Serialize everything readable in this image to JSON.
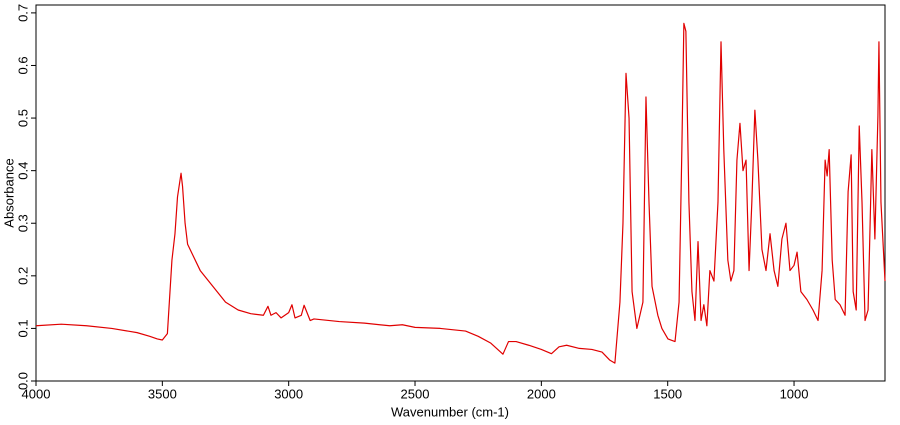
{
  "chart_data": {
    "type": "line",
    "xlabel": "Wavenumber (cm-1)",
    "ylabel": "Absorbance",
    "color": "#e00000",
    "xlim": [
      4000,
      640
    ],
    "ylim": [
      0,
      0.715
    ],
    "xticks": [
      4000,
      3500,
      3000,
      2500,
      2000,
      1500,
      1000
    ],
    "yticks": [
      {
        "value": 0,
        "label": "0.0"
      },
      0.1,
      0.2,
      0.3,
      0.4,
      0.5,
      0.6,
      0.7
    ],
    "x": [
      4000,
      3900,
      3800,
      3700,
      3600,
      3550,
      3520,
      3500,
      3480,
      3462,
      3450,
      3440,
      3426,
      3420,
      3410,
      3400,
      3350,
      3300,
      3250,
      3200,
      3150,
      3100,
      3082,
      3070,
      3050,
      3030,
      3000,
      2987,
      2975,
      2950,
      2939,
      2915,
      2900,
      2800,
      2700,
      2600,
      2550,
      2500,
      2400,
      2300,
      2250,
      2200,
      2152,
      2130,
      2100,
      2050,
      2000,
      1960,
      1930,
      1900,
      1850,
      1800,
      1760,
      1730,
      1709,
      1689,
      1677,
      1665,
      1653,
      1641,
      1622,
      1598,
      1586,
      1574,
      1562,
      1539,
      1523,
      1499,
      1471,
      1455,
      1444,
      1436,
      1428,
      1416,
      1404,
      1392,
      1380,
      1368,
      1357,
      1345,
      1333,
      1317,
      1301,
      1289,
      1278,
      1262,
      1250,
      1238,
      1226,
      1214,
      1202,
      1190,
      1178,
      1167,
      1155,
      1143,
      1127,
      1111,
      1095,
      1079,
      1064,
      1048,
      1032,
      1016,
      1000,
      988,
      973,
      949,
      925,
      905,
      889,
      877,
      869,
      861,
      849,
      837,
      818,
      798,
      786,
      774,
      766,
      754,
      742,
      731,
      719,
      707,
      692,
      680,
      668,
      664,
      656,
      640
    ],
    "values": [
      0.105,
      0.108,
      0.105,
      0.1,
      0.092,
      0.085,
      0.08,
      0.078,
      0.09,
      0.23,
      0.28,
      0.35,
      0.395,
      0.37,
      0.3,
      0.26,
      0.21,
      0.18,
      0.15,
      0.135,
      0.128,
      0.125,
      0.142,
      0.125,
      0.13,
      0.12,
      0.13,
      0.145,
      0.12,
      0.125,
      0.144,
      0.115,
      0.118,
      0.113,
      0.11,
      0.105,
      0.107,
      0.102,
      0.1,
      0.095,
      0.085,
      0.072,
      0.051,
      0.075,
      0.075,
      0.068,
      0.06,
      0.052,
      0.065,
      0.068,
      0.062,
      0.06,
      0.055,
      0.04,
      0.034,
      0.15,
      0.3,
      0.585,
      0.5,
      0.17,
      0.1,
      0.15,
      0.54,
      0.34,
      0.18,
      0.125,
      0.1,
      0.08,
      0.075,
      0.15,
      0.44,
      0.68,
      0.665,
      0.34,
      0.17,
      0.115,
      0.265,
      0.115,
      0.145,
      0.105,
      0.21,
      0.19,
      0.34,
      0.645,
      0.44,
      0.23,
      0.19,
      0.21,
      0.42,
      0.49,
      0.4,
      0.42,
      0.21,
      0.34,
      0.515,
      0.42,
      0.25,
      0.21,
      0.28,
      0.21,
      0.18,
      0.27,
      0.3,
      0.21,
      0.22,
      0.245,
      0.17,
      0.155,
      0.135,
      0.115,
      0.21,
      0.42,
      0.39,
      0.44,
      0.23,
      0.155,
      0.145,
      0.125,
      0.36,
      0.43,
      0.17,
      0.135,
      0.485,
      0.34,
      0.115,
      0.135,
      0.44,
      0.27,
      0.505,
      0.645,
      0.34,
      0.19
    ]
  }
}
